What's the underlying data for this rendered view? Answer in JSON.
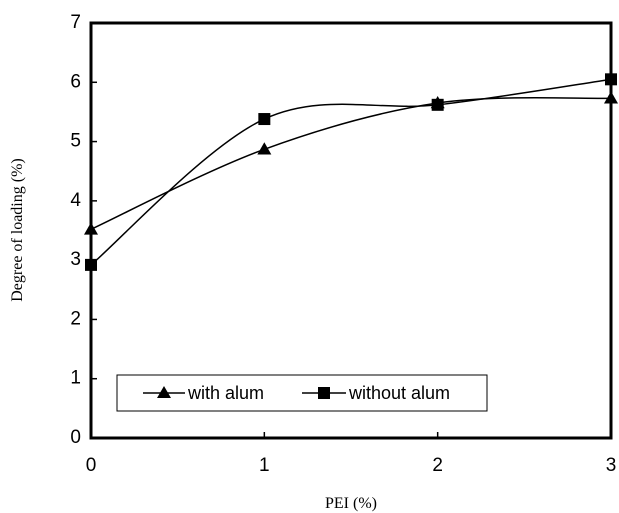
{
  "chart_data": {
    "type": "line",
    "title": "",
    "xlabel": "PEI (%)",
    "ylabel": "Degree of loading (%)",
    "xlim": [
      0,
      3
    ],
    "ylim": [
      0,
      7
    ],
    "x_ticks": [
      "0",
      "1",
      "2",
      "3"
    ],
    "y_ticks": [
      "0",
      "1",
      "2",
      "3",
      "4",
      "5",
      "6",
      "7"
    ],
    "grid": false,
    "legend_position": "bottom-left",
    "series": [
      {
        "name": "with alum",
        "marker": "triangle",
        "color": "#000000",
        "x": [
          0,
          1,
          2,
          3
        ],
        "values": [
          3.52,
          4.87,
          5.65,
          5.73
        ]
      },
      {
        "name": "without alum",
        "marker": "square",
        "color": "#000000",
        "x": [
          0,
          1,
          2,
          3
        ],
        "values": [
          2.92,
          5.38,
          5.62,
          6.05
        ]
      }
    ]
  }
}
